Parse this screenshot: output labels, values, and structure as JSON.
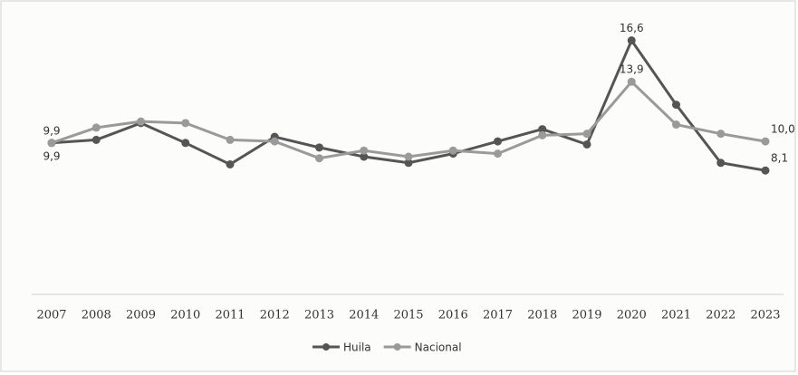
{
  "chart_data": {
    "type": "line",
    "categories": [
      "2007",
      "2008",
      "2009",
      "2010",
      "2011",
      "2012",
      "2013",
      "2014",
      "2015",
      "2016",
      "2017",
      "2018",
      "2019",
      "2020",
      "2021",
      "2022",
      "2023"
    ],
    "series": [
      {
        "name": "Huila",
        "color": "#555555",
        "values": [
          9.9,
          10.1,
          11.2,
          9.9,
          8.5,
          10.3,
          9.6,
          9.0,
          8.6,
          9.2,
          10.0,
          10.8,
          9.8,
          16.6,
          12.4,
          8.6,
          8.1
        ],
        "value_labels": [
          "9,9",
          null,
          null,
          null,
          null,
          null,
          null,
          null,
          null,
          null,
          null,
          null,
          null,
          "16,6",
          null,
          null,
          "8,1"
        ]
      },
      {
        "name": "Nacional",
        "color": "#9a9a9a",
        "values": [
          9.9,
          10.9,
          11.3,
          11.2,
          10.1,
          10.0,
          8.9,
          9.4,
          9.0,
          9.4,
          9.2,
          10.4,
          10.5,
          13.9,
          11.1,
          10.5,
          10.0
        ],
        "value_labels": [
          "9,9",
          null,
          null,
          null,
          null,
          null,
          null,
          null,
          null,
          null,
          null,
          null,
          null,
          "13,9",
          null,
          null,
          "10,0"
        ]
      }
    ],
    "ylim": [
      0,
      18
    ],
    "legend": "bottom"
  }
}
